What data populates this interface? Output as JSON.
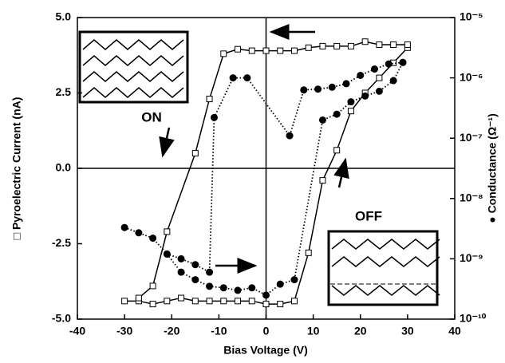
{
  "chart_data": {
    "type": "line",
    "xlabel": "Bias Voltage (V)",
    "ylabel": "□ Pyroelectric Current (nA)",
    "y2label": "● Conductance (Ω⁻¹)",
    "xlim": [
      -40,
      40
    ],
    "xticks": [
      -40,
      -30,
      -20,
      -10,
      0,
      10,
      20,
      30,
      40
    ],
    "ylim": [
      -5,
      5
    ],
    "yticks": [
      {
        "value": -5,
        "label": "-5.0"
      },
      -2.5,
      {
        "value": 0,
        "label": "0.0"
      },
      2.5,
      {
        "value": 5,
        "label": "5.0"
      }
    ],
    "y2lim": [
      1e-10,
      1e-05
    ],
    "y2log": true,
    "y2ticks": [
      {
        "value": 1e-10,
        "label": "10⁻¹⁰"
      },
      {
        "value": 1e-09,
        "label": "10⁻⁹"
      },
      {
        "value": 1e-08,
        "label": "10⁻⁸"
      },
      {
        "value": 1e-07,
        "label": "10⁻⁷"
      },
      {
        "value": 1e-06,
        "label": "10⁻⁶"
      },
      {
        "value": 1e-05,
        "label": "10⁻⁵"
      }
    ],
    "annotations": [
      "ON",
      "OFF"
    ],
    "series": [
      {
        "color": "#000000",
        "marker": "open-square",
        "line_style": "solid",
        "x": [
          -30,
          -27,
          -24,
          -21,
          -18,
          -15,
          -12,
          -9,
          -6,
          -3,
          0,
          3,
          6,
          9,
          12,
          15,
          18,
          21,
          24,
          27,
          30
        ],
        "values": [
          -4.4,
          -4.4,
          -4.5,
          -4.4,
          -4.3,
          -4.4,
          -4.4,
          -4.4,
          -4.4,
          -4.4,
          -4.5,
          -4.5,
          -4.4,
          -2.8,
          -0.4,
          0.6,
          1.9,
          2.5,
          3.0,
          3.5,
          4.0
        ]
      },
      {
        "color": "#000000",
        "marker": "open-square",
        "line_style": "solid",
        "x": [
          -27,
          -24,
          -21,
          -15,
          -12,
          -9,
          -6,
          -3,
          0,
          3,
          6,
          9,
          12,
          15,
          18,
          21,
          24,
          27,
          30
        ],
        "values": [
          -4.3,
          -3.9,
          -2.1,
          0.5,
          2.3,
          3.8,
          3.95,
          3.9,
          3.9,
          3.9,
          3.9,
          4.0,
          4.05,
          4.05,
          4.05,
          4.2,
          4.1,
          4.1,
          4.1
        ]
      },
      {
        "color": "#000000",
        "marker": "filled-circle",
        "line_style": "dotted",
        "axis": "y2",
        "x": [
          -30,
          -27,
          -24,
          -21,
          -18,
          -15,
          -12,
          -11,
          -7,
          -4,
          5,
          8,
          11,
          14,
          17,
          20,
          23,
          26,
          29
        ],
        "values": [
          3.3e-09,
          2.7e-09,
          2.2e-09,
          1.2e-09,
          1e-09,
          8e-10,
          6e-10,
          2.2e-07,
          1e-06,
          1e-06,
          1.1e-07,
          6.3e-07,
          6.5e-07,
          7e-07,
          8e-07,
          1.1e-06,
          1.4e-06,
          1.7e-06,
          1.8e-06
        ]
      },
      {
        "color": "#000000",
        "marker": "filled-circle",
        "line_style": "dotted",
        "axis": "y2",
        "x": [
          -21,
          -18,
          -15,
          -12,
          -9,
          -6,
          -3,
          0,
          3,
          6,
          12,
          15,
          18,
          21,
          24,
          27,
          29
        ],
        "values": [
          1.2e-09,
          6e-10,
          4.5e-10,
          3.5e-10,
          3.3e-10,
          3e-10,
          3.3e-10,
          2.5e-10,
          3.8e-10,
          4.5e-10,
          2e-07,
          2.5e-07,
          4e-07,
          5e-07,
          6e-07,
          9e-07,
          1.8e-06
        ]
      }
    ]
  }
}
